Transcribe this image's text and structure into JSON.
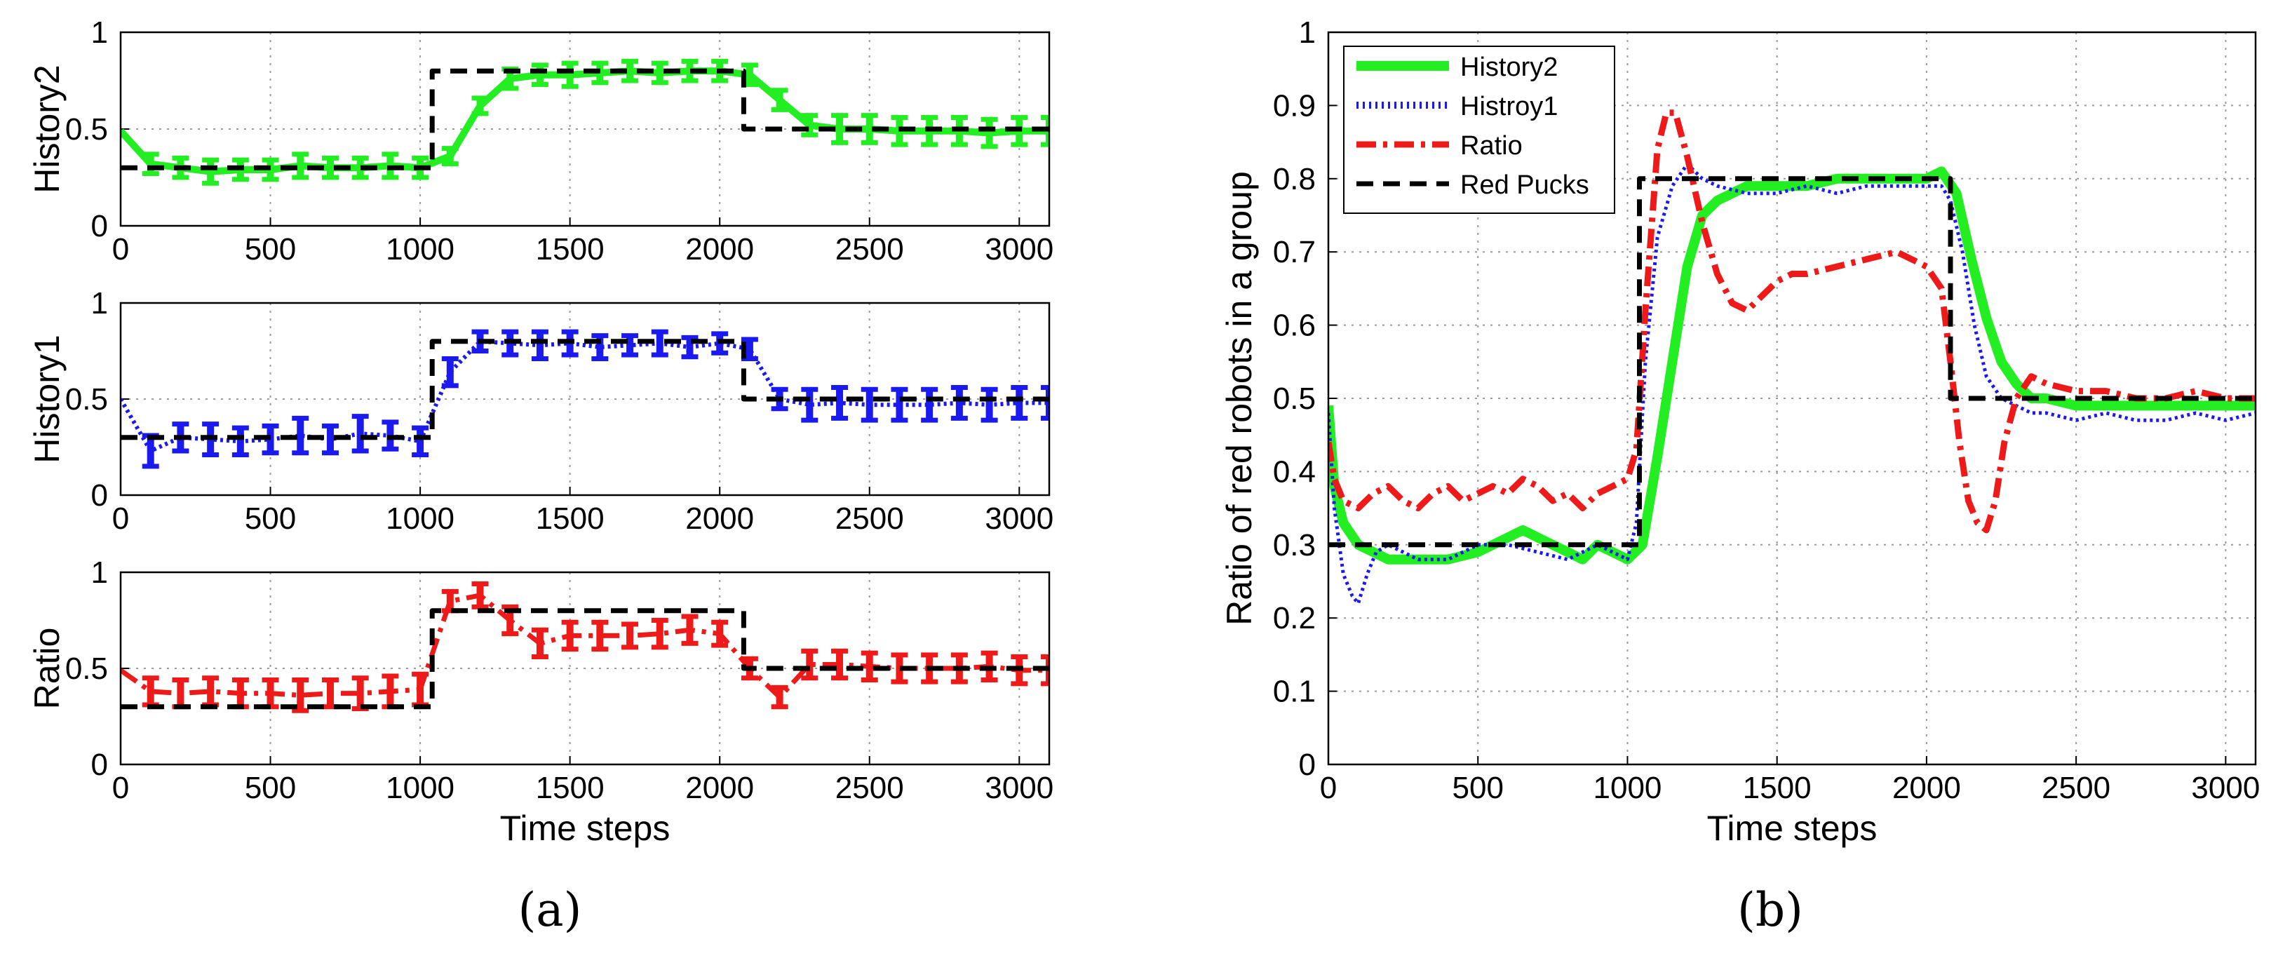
{
  "panel_labels": {
    "a": "(a)",
    "b": "(b)"
  },
  "colors": {
    "history2": "#22ee22",
    "history1": "#1a1aee",
    "ratio": "#ee1a1a",
    "red_pucks": "#000000",
    "grid": "#9a9a9a"
  },
  "chart_data": [
    {
      "type": "line",
      "panel": "a",
      "ylabel": "History2",
      "xlim": [
        0,
        3100
      ],
      "ylim": [
        0,
        1
      ],
      "xticks": [
        "0",
        "500",
        "1000",
        "1500",
        "2000",
        "2500",
        "3000"
      ],
      "yticks": [
        "0",
        "0.5",
        "1"
      ],
      "grid": true,
      "series": [
        {
          "name": "History2",
          "color": "#22ee22",
          "style": "solid-errorbar",
          "x": [
            0,
            100,
            200,
            300,
            400,
            500,
            600,
            700,
            800,
            900,
            1000,
            1100,
            1200,
            1300,
            1400,
            1500,
            1600,
            1700,
            1800,
            1900,
            2000,
            2100,
            2200,
            2300,
            2400,
            2500,
            2600,
            2700,
            2800,
            2900,
            3000,
            3100
          ],
          "y": [
            0.49,
            0.32,
            0.3,
            0.28,
            0.29,
            0.29,
            0.31,
            0.3,
            0.3,
            0.31,
            0.3,
            0.36,
            0.62,
            0.76,
            0.78,
            0.78,
            0.79,
            0.8,
            0.79,
            0.8,
            0.8,
            0.78,
            0.65,
            0.52,
            0.5,
            0.5,
            0.49,
            0.49,
            0.49,
            0.48,
            0.49,
            0.49
          ],
          "err": [
            0.0,
            0.05,
            0.05,
            0.06,
            0.05,
            0.05,
            0.06,
            0.05,
            0.05,
            0.06,
            0.05,
            0.04,
            0.04,
            0.05,
            0.05,
            0.06,
            0.05,
            0.05,
            0.05,
            0.05,
            0.05,
            0.05,
            0.05,
            0.05,
            0.07,
            0.07,
            0.07,
            0.07,
            0.07,
            0.07,
            0.07,
            0.07
          ]
        },
        {
          "name": "Red Pucks",
          "color": "#000000",
          "style": "dashed",
          "x": [
            0,
            1040,
            1040,
            2080,
            2080,
            3100
          ],
          "y": [
            0.3,
            0.3,
            0.8,
            0.8,
            0.5,
            0.5
          ]
        }
      ]
    },
    {
      "type": "line",
      "panel": "a",
      "ylabel": "History1",
      "xlim": [
        0,
        3100
      ],
      "ylim": [
        0,
        1
      ],
      "xticks": [
        "0",
        "500",
        "1000",
        "1500",
        "2000",
        "2500",
        "3000"
      ],
      "yticks": [
        "0",
        "0.5",
        "1"
      ],
      "grid": true,
      "series": [
        {
          "name": "History1",
          "color": "#1a1aee",
          "style": "dotted-errorbar",
          "x": [
            0,
            100,
            200,
            300,
            400,
            500,
            600,
            700,
            800,
            900,
            1000,
            1100,
            1200,
            1300,
            1400,
            1500,
            1600,
            1700,
            1800,
            1900,
            2000,
            2100,
            2200,
            2300,
            2400,
            2500,
            2600,
            2700,
            2800,
            2900,
            3000,
            3100
          ],
          "y": [
            0.5,
            0.23,
            0.3,
            0.29,
            0.28,
            0.29,
            0.31,
            0.29,
            0.32,
            0.31,
            0.28,
            0.64,
            0.8,
            0.79,
            0.78,
            0.79,
            0.77,
            0.78,
            0.79,
            0.77,
            0.79,
            0.76,
            0.5,
            0.47,
            0.48,
            0.47,
            0.47,
            0.47,
            0.48,
            0.47,
            0.48,
            0.48
          ],
          "err": [
            0.0,
            0.08,
            0.07,
            0.08,
            0.07,
            0.07,
            0.09,
            0.07,
            0.09,
            0.07,
            0.07,
            0.07,
            0.05,
            0.06,
            0.07,
            0.06,
            0.06,
            0.05,
            0.06,
            0.05,
            0.05,
            0.05,
            0.05,
            0.08,
            0.08,
            0.08,
            0.08,
            0.08,
            0.08,
            0.08,
            0.08,
            0.08
          ]
        },
        {
          "name": "Red Pucks",
          "color": "#000000",
          "style": "dashed",
          "x": [
            0,
            1040,
            1040,
            2080,
            2080,
            3100
          ],
          "y": [
            0.3,
            0.3,
            0.8,
            0.8,
            0.5,
            0.5
          ]
        }
      ]
    },
    {
      "type": "line",
      "panel": "a",
      "ylabel": "Ratio",
      "xlabel": "Time steps",
      "xlim": [
        0,
        3100
      ],
      "ylim": [
        0,
        1
      ],
      "xticks": [
        "0",
        "500",
        "1000",
        "1500",
        "2000",
        "2500",
        "3000"
      ],
      "yticks": [
        "0",
        "0.5",
        "1"
      ],
      "grid": true,
      "series": [
        {
          "name": "Ratio",
          "color": "#ee1a1a",
          "style": "dashdot-errorbar",
          "x": [
            0,
            100,
            200,
            300,
            400,
            500,
            600,
            700,
            800,
            900,
            1000,
            1100,
            1200,
            1300,
            1400,
            1500,
            1600,
            1700,
            1800,
            1900,
            2000,
            2100,
            2200,
            2300,
            2400,
            2500,
            2600,
            2700,
            2800,
            2900,
            3000,
            3100
          ],
          "y": [
            0.49,
            0.38,
            0.37,
            0.38,
            0.37,
            0.37,
            0.36,
            0.37,
            0.37,
            0.38,
            0.39,
            0.85,
            0.88,
            0.75,
            0.63,
            0.67,
            0.67,
            0.67,
            0.68,
            0.7,
            0.68,
            0.5,
            0.35,
            0.52,
            0.52,
            0.51,
            0.5,
            0.5,
            0.5,
            0.51,
            0.49,
            0.49
          ],
          "err": [
            0.0,
            0.07,
            0.07,
            0.07,
            0.07,
            0.07,
            0.08,
            0.07,
            0.08,
            0.08,
            0.08,
            0.05,
            0.06,
            0.07,
            0.07,
            0.07,
            0.07,
            0.06,
            0.07,
            0.07,
            0.06,
            0.05,
            0.05,
            0.07,
            0.07,
            0.07,
            0.07,
            0.07,
            0.07,
            0.07,
            0.07,
            0.07
          ]
        },
        {
          "name": "Red Pucks",
          "color": "#000000",
          "style": "dashed",
          "x": [
            0,
            1040,
            1040,
            2080,
            2080,
            3100
          ],
          "y": [
            0.3,
            0.3,
            0.8,
            0.8,
            0.5,
            0.5
          ]
        }
      ]
    },
    {
      "type": "line",
      "panel": "b",
      "xlabel": "Time steps",
      "ylabel": "Ratio of red robots in a group",
      "xlim": [
        0,
        3100
      ],
      "ylim": [
        0,
        1
      ],
      "xticks": [
        "0",
        "500",
        "1000",
        "1500",
        "2000",
        "2500",
        "3000"
      ],
      "yticks": [
        "0",
        "0.1",
        "0.2",
        "0.3",
        "0.4",
        "0.5",
        "0.6",
        "0.7",
        "0.8",
        "0.9",
        "1"
      ],
      "grid": true,
      "legend_position": "top-left",
      "series": [
        {
          "name": "History2",
          "color": "#22ee22",
          "style": "solid",
          "x": [
            0,
            20,
            50,
            100,
            150,
            200,
            300,
            400,
            500,
            550,
            600,
            650,
            700,
            750,
            800,
            850,
            900,
            950,
            1000,
            1050,
            1100,
            1150,
            1200,
            1250,
            1300,
            1350,
            1400,
            1500,
            1600,
            1700,
            1800,
            1900,
            2000,
            2050,
            2100,
            2150,
            2200,
            2250,
            2300,
            2350,
            2400,
            2500,
            2600,
            2700,
            2800,
            2900,
            3000,
            3100
          ],
          "y": [
            0.49,
            0.38,
            0.33,
            0.3,
            0.29,
            0.28,
            0.28,
            0.28,
            0.29,
            0.3,
            0.31,
            0.32,
            0.31,
            0.3,
            0.29,
            0.28,
            0.3,
            0.29,
            0.28,
            0.3,
            0.42,
            0.55,
            0.68,
            0.75,
            0.77,
            0.78,
            0.79,
            0.79,
            0.79,
            0.8,
            0.8,
            0.8,
            0.8,
            0.81,
            0.78,
            0.69,
            0.61,
            0.55,
            0.52,
            0.5,
            0.5,
            0.49,
            0.49,
            0.49,
            0.49,
            0.49,
            0.49,
            0.49
          ]
        },
        {
          "name": "Histroy1",
          "color": "#1a1aee",
          "style": "dotted",
          "x": [
            0,
            20,
            50,
            80,
            100,
            130,
            160,
            200,
            300,
            400,
            500,
            600,
            700,
            800,
            900,
            950,
            1000,
            1030,
            1060,
            1100,
            1150,
            1200,
            1250,
            1300,
            1400,
            1500,
            1600,
            1700,
            1800,
            1900,
            2000,
            2050,
            2080,
            2120,
            2160,
            2200,
            2250,
            2300,
            2350,
            2400,
            2500,
            2600,
            2700,
            2800,
            2900,
            3000,
            3100
          ],
          "y": [
            0.48,
            0.35,
            0.26,
            0.23,
            0.22,
            0.26,
            0.29,
            0.3,
            0.28,
            0.28,
            0.3,
            0.3,
            0.29,
            0.28,
            0.3,
            0.29,
            0.28,
            0.33,
            0.55,
            0.72,
            0.79,
            0.82,
            0.8,
            0.79,
            0.78,
            0.78,
            0.79,
            0.78,
            0.79,
            0.79,
            0.79,
            0.79,
            0.77,
            0.7,
            0.6,
            0.53,
            0.5,
            0.49,
            0.48,
            0.48,
            0.47,
            0.48,
            0.47,
            0.47,
            0.48,
            0.47,
            0.48
          ]
        },
        {
          "name": "Ratio",
          "color": "#ee1a1a",
          "style": "dashdot",
          "x": [
            0,
            20,
            50,
            100,
            150,
            200,
            250,
            300,
            350,
            400,
            450,
            500,
            550,
            600,
            650,
            700,
            750,
            800,
            850,
            900,
            950,
            1000,
            1030,
            1060,
            1100,
            1130,
            1160,
            1200,
            1250,
            1300,
            1350,
            1400,
            1450,
            1500,
            1550,
            1600,
            1700,
            1800,
            1900,
            2000,
            2050,
            2080,
            2110,
            2140,
            2170,
            2200,
            2230,
            2260,
            2300,
            2350,
            2400,
            2500,
            2600,
            2700,
            2800,
            2900,
            3000,
            3100
          ],
          "y": [
            0.44,
            0.39,
            0.36,
            0.35,
            0.37,
            0.38,
            0.36,
            0.35,
            0.37,
            0.38,
            0.36,
            0.37,
            0.38,
            0.37,
            0.39,
            0.38,
            0.36,
            0.37,
            0.35,
            0.37,
            0.38,
            0.39,
            0.43,
            0.62,
            0.84,
            0.89,
            0.89,
            0.83,
            0.74,
            0.67,
            0.63,
            0.62,
            0.64,
            0.66,
            0.67,
            0.67,
            0.68,
            0.69,
            0.7,
            0.68,
            0.65,
            0.55,
            0.44,
            0.36,
            0.33,
            0.32,
            0.36,
            0.44,
            0.5,
            0.53,
            0.52,
            0.51,
            0.51,
            0.5,
            0.5,
            0.51,
            0.5,
            0.5
          ]
        },
        {
          "name": "Red Pucks",
          "color": "#000000",
          "style": "dashed",
          "x": [
            0,
            1040,
            1040,
            2080,
            2080,
            3100
          ],
          "y": [
            0.3,
            0.3,
            0.8,
            0.8,
            0.5,
            0.5
          ]
        }
      ]
    }
  ]
}
